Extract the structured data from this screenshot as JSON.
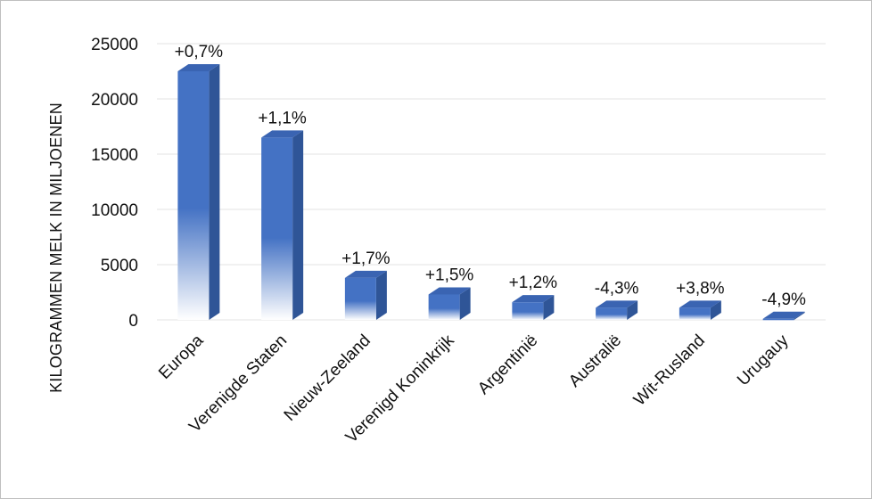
{
  "chart_data": {
    "type": "bar",
    "ylabel": "KILOGRAMMEN MELK IN MILJOENEN",
    "xlabel": "",
    "title": "",
    "ylim": [
      0,
      25000
    ],
    "y_ticks": [
      "0",
      "5000",
      "10000",
      "15000",
      "20000",
      "25000"
    ],
    "grid": true,
    "categories": [
      "Europa",
      "Verenigde Staten",
      "Nieuw-Zeeland",
      "Verenigd Koninkrijk",
      "Argentinië",
      "Australië",
      "Wit-Rusland",
      "Urugauy"
    ],
    "values": [
      22500,
      16500,
      3800,
      2300,
      1600,
      1100,
      1100,
      100
    ],
    "data_labels": [
      "+0,7%",
      "+1,1%",
      "+1,7%",
      "+1,5%",
      "+1,2%",
      "-4,3%",
      "+3,8%",
      "-4,9%"
    ],
    "colors": {
      "front": "#4472c4",
      "side": "#2f5597",
      "top": "#3a64b2",
      "fade": "#ffffff"
    }
  }
}
